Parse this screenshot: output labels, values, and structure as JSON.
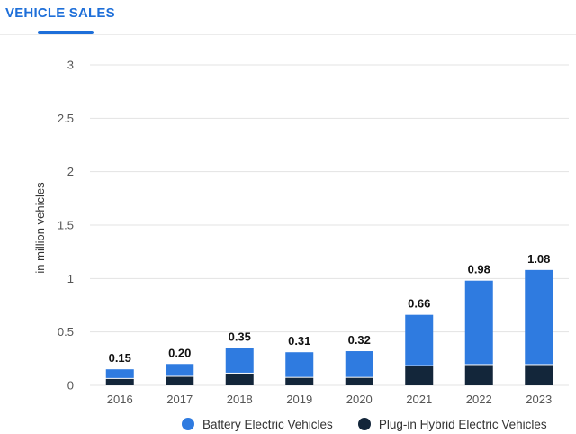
{
  "tab": {
    "label": "VEHICLE SALES"
  },
  "colors": {
    "accent": "#1e6fd9",
    "bev": "#2f7be0",
    "phev": "#13263a",
    "grid": "#e3e3e3",
    "tick_text": "#555555"
  },
  "chart_data": {
    "type": "bar",
    "stacked": true,
    "categories": [
      "2016",
      "2017",
      "2018",
      "2019",
      "2020",
      "2021",
      "2022",
      "2023"
    ],
    "series": [
      {
        "name": "Plug-in Hybrid Electric Vehicles",
        "values": [
          0.06,
          0.08,
          0.11,
          0.07,
          0.07,
          0.18,
          0.19,
          0.19
        ]
      },
      {
        "name": "Battery Electric Vehicles",
        "values": [
          0.09,
          0.12,
          0.24,
          0.24,
          0.25,
          0.48,
          0.79,
          0.89
        ]
      }
    ],
    "totals": [
      "0.15",
      "0.20",
      "0.35",
      "0.31",
      "0.32",
      "0.66",
      "0.98",
      "1.08"
    ],
    "ylabel": "in million vehicles",
    "ylim": [
      0,
      3
    ],
    "yticks": [
      0,
      0.5,
      1,
      1.5,
      2,
      2.5,
      3
    ],
    "ytick_labels": [
      "0",
      "0.5",
      "1",
      "1.5",
      "2",
      "2.5",
      "3"
    ],
    "grid": true,
    "legend": {
      "position": "bottom",
      "items": [
        {
          "label": "Battery Electric Vehicles"
        },
        {
          "label": "Plug-in Hybrid Electric Vehicles"
        }
      ]
    }
  }
}
